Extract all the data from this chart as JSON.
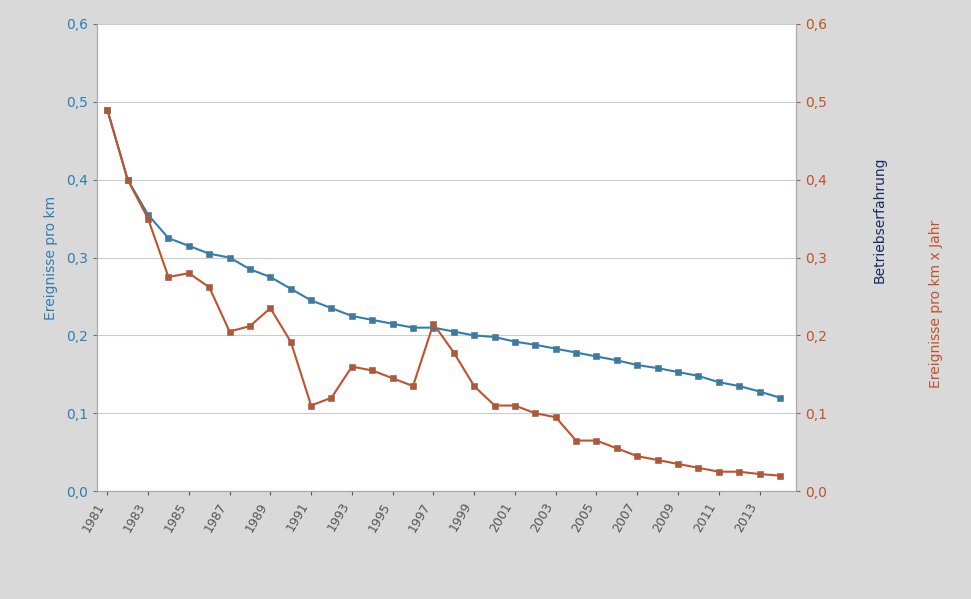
{
  "years": [
    1981,
    1982,
    1983,
    1984,
    1985,
    1986,
    1987,
    1988,
    1989,
    1990,
    1991,
    1992,
    1993,
    1994,
    1995,
    1996,
    1997,
    1998,
    1999,
    2000,
    2001,
    2002,
    2003,
    2004,
    2005,
    2006,
    2007,
    2008,
    2009,
    2010,
    2011,
    2012,
    2013,
    2014
  ],
  "blue_series": [
    0.49,
    0.4,
    0.355,
    0.325,
    0.315,
    0.305,
    0.3,
    0.285,
    0.275,
    0.26,
    0.245,
    0.235,
    0.225,
    0.22,
    0.215,
    0.21,
    0.21,
    0.205,
    0.2,
    0.198,
    0.192,
    0.188,
    0.183,
    0.178,
    0.173,
    0.168,
    0.162,
    0.158,
    0.153,
    0.148,
    0.14,
    0.135,
    0.128,
    0.12
  ],
  "orange_series": [
    0.49,
    0.4,
    0.35,
    0.275,
    0.28,
    0.262,
    0.205,
    0.212,
    0.235,
    0.192,
    0.11,
    0.12,
    0.16,
    0.155,
    0.145,
    0.135,
    0.215,
    0.178,
    0.135,
    0.11,
    0.11,
    0.1,
    0.095,
    0.065,
    0.065,
    0.055,
    0.045,
    0.04,
    0.035,
    0.03,
    0.025,
    0.025,
    0.022,
    0.02
  ],
  "blue_color": "#2e7fb0",
  "orange_color": "#c0522a",
  "navy_color": "#1a2a5e",
  "background_color": "#d9d9d9",
  "plot_background": "#ffffff",
  "ylabel_left": "Ereignisse pro km",
  "ylabel_right_top": "Betriebserfahrung",
  "ylabel_right_bottom": "Ereignisse pro km x Jahr",
  "ylim": [
    0.0,
    0.6
  ],
  "yticks": [
    0.0,
    0.1,
    0.2,
    0.3,
    0.4,
    0.5,
    0.6
  ],
  "ytick_labels": [
    "0,0",
    "0,1",
    "0,2",
    "0,3",
    "0,4",
    "0,5",
    "0,6"
  ],
  "xtick_years": [
    1981,
    1983,
    1985,
    1987,
    1989,
    1991,
    1993,
    1995,
    1997,
    1999,
    2001,
    2003,
    2005,
    2007,
    2009,
    2011,
    2013
  ],
  "marker": "s",
  "marker_size": 4,
  "line_width": 1.5,
  "figsize": [
    9.71,
    5.99
  ],
  "dpi": 100
}
